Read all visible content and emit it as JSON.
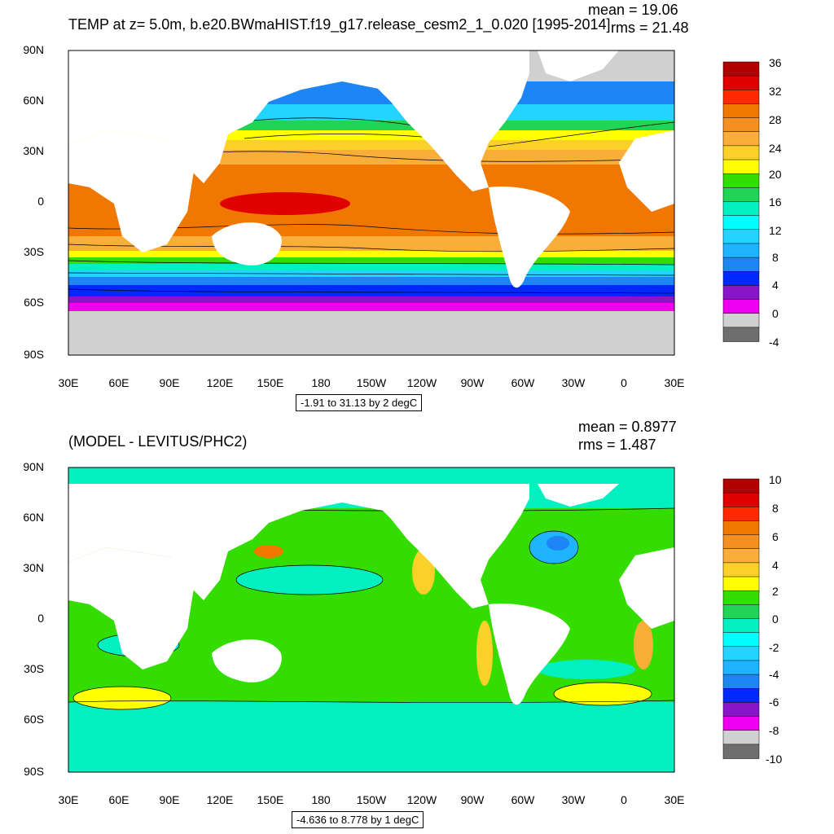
{
  "panels": [
    {
      "title": "TEMP at z=   5.0m, b.e20.BWmaHIST.f19_g17.release_cesm2_1_0.020 [1995-2014]",
      "mean": "mean = 19.06",
      "rms": "rms = 21.48",
      "lat_labels": [
        "90N",
        "60N",
        "30N",
        "0",
        "30S",
        "60S",
        "90S"
      ],
      "lon_labels": [
        "30E",
        "60E",
        "90E",
        "120E",
        "150E",
        "180",
        "150W",
        "120W",
        "90W",
        "60W",
        "30W",
        "0",
        "30E"
      ],
      "range_text": "-1.91 to 31.13 by 2 degC",
      "colorbar_labels": [
        "36",
        "32",
        "28",
        "24",
        "20",
        "16",
        "12",
        "8",
        "4",
        "0",
        "-4"
      ],
      "colorbar_colors": [
        "#b30000",
        "#e10000",
        "#ff2a00",
        "#f07800",
        "#f59020",
        "#f8ae38",
        "#fbd028",
        "#ffff00",
        "#33dd00",
        "#22d455",
        "#00f0c0",
        "#00ffff",
        "#22d4ff",
        "#1fb4ff",
        "#1d86f4",
        "#0028ff",
        "#8a14c8",
        "#f000f0",
        "#d0d0d0",
        "#6e6e6e"
      ]
    },
    {
      "title": "(MODEL - LEVITUS/PHC2)",
      "mean": "mean = 0.8977",
      "rms": "rms = 1.487",
      "lat_labels": [
        "90N",
        "60N",
        "30N",
        "0",
        "30S",
        "60S",
        "90S"
      ],
      "lon_labels": [
        "30E",
        "60E",
        "90E",
        "120E",
        "150E",
        "180",
        "150W",
        "120W",
        "90W",
        "60W",
        "30W",
        "0",
        "30E"
      ],
      "range_text": "-4.636 to 8.778 by 1 degC",
      "colorbar_labels": [
        "10",
        "8",
        "6",
        "4",
        "2",
        "0",
        "-2",
        "-4",
        "-6",
        "-8",
        "-10"
      ],
      "colorbar_colors": [
        "#b30000",
        "#e10000",
        "#ff2a00",
        "#f07800",
        "#f59020",
        "#f8ae38",
        "#fbd028",
        "#ffff00",
        "#33dd00",
        "#22d455",
        "#00f0c0",
        "#00ffff",
        "#22d4ff",
        "#1fb4ff",
        "#1d86f4",
        "#0028ff",
        "#8a14c8",
        "#f000f0",
        "#d0d0d0",
        "#6e6e6e"
      ]
    }
  ]
}
